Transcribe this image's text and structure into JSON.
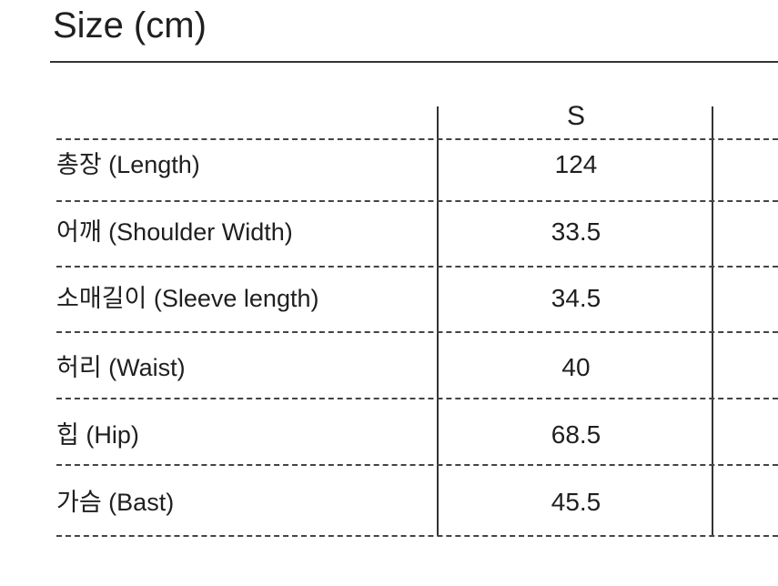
{
  "title": "Size (cm)",
  "table": {
    "columns": [
      "S"
    ],
    "rows": [
      {
        "label": "총장 (Length)",
        "value": "124"
      },
      {
        "label": "어깨 (Shoulder Width)",
        "value": "33.5"
      },
      {
        "label": "소매길이 (Sleeve length)",
        "value": "34.5"
      },
      {
        "label": "허리 (Waist)",
        "value": "40"
      },
      {
        "label": "힙 (Hip)",
        "value": "68.5"
      },
      {
        "label": "가슴 (Bast)",
        "value": "45.5"
      }
    ]
  }
}
